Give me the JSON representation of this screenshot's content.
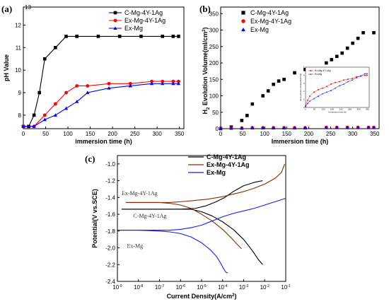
{
  "chart_data": [
    {
      "type": "line",
      "panel_label": "(a)",
      "xlabel": "immersion time (h)",
      "ylabel": "pH Value",
      "xlim": [
        0,
        360
      ],
      "ylim": [
        7.4,
        12.8
      ],
      "x_ticks": [
        0,
        50,
        100,
        150,
        200,
        250,
        300,
        350
      ],
      "y_ticks": [
        8,
        9,
        10,
        11,
        12
      ],
      "extra_tick": "13",
      "legend_position": "top-right",
      "series": [
        {
          "name": "C-Mg-4Y-1Ag",
          "color": "#000000",
          "marker": "square",
          "x": [
            0,
            12,
            24,
            36,
            48,
            72,
            96,
            120,
            168,
            216,
            264,
            312,
            336,
            348
          ],
          "y": [
            7.5,
            7.5,
            8.0,
            9.0,
            10.5,
            11.0,
            11.5,
            11.5,
            11.5,
            11.5,
            11.5,
            11.5,
            11.5,
            11.5
          ]
        },
        {
          "name": "Ex-Mg-4Y-1Ag",
          "color": "#ff0000",
          "marker": "circle",
          "x": [
            0,
            24,
            48,
            72,
            96,
            120,
            144,
            192,
            240,
            288,
            312,
            336,
            348
          ],
          "y": [
            7.5,
            7.5,
            8.0,
            8.5,
            9.0,
            9.3,
            9.3,
            9.4,
            9.4,
            9.5,
            9.5,
            9.5,
            9.5
          ]
        },
        {
          "name": "Ex-Mg",
          "color": "#0000ff",
          "marker": "triangle",
          "x": [
            0,
            24,
            48,
            72,
            96,
            120,
            144,
            192,
            240,
            288,
            312,
            336,
            348
          ],
          "y": [
            7.5,
            7.5,
            7.8,
            8.0,
            8.3,
            8.6,
            9.0,
            9.2,
            9.3,
            9.4,
            9.4,
            9.4,
            9.4
          ]
        }
      ]
    },
    {
      "type": "scatter",
      "panel_label": "(b)",
      "xlabel": "Immersion time (h)",
      "ylabel_main": "H",
      "ylabel_sub": "2",
      "ylabel_rest": " Evolution Volume(ml/cm",
      "ylabel_sup": "2",
      "ylabel_end": ")",
      "xlim": [
        0,
        360
      ],
      "ylim": [
        0,
        370
      ],
      "x_ticks": [
        0,
        50,
        100,
        150,
        200,
        250,
        300,
        350
      ],
      "y_ticks": [
        0,
        50,
        100,
        150,
        200,
        250,
        300,
        350
      ],
      "legend_position": "top-left",
      "series": [
        {
          "name": "C-Mg-4Y-1Ag",
          "color": "#000000",
          "marker": "square",
          "x": [
            0,
            24,
            48,
            60,
            72,
            96,
            108,
            120,
            132,
            144,
            168,
            192,
            240,
            252,
            264,
            276,
            288,
            300,
            312,
            324,
            348
          ],
          "y": [
            0,
            5,
            25,
            40,
            75,
            100,
            115,
            135,
            145,
            150,
            170,
            180,
            200,
            210,
            220,
            230,
            245,
            260,
            275,
            292,
            292
          ]
        },
        {
          "name": "Ex-Mg-4Y-1Ag",
          "color": "#ff0000",
          "marker": "circle",
          "x": [
            0,
            24,
            48,
            72,
            96,
            120,
            144,
            168,
            192,
            240,
            264,
            288,
            312,
            336,
            348
          ],
          "y": [
            2,
            2,
            2,
            3,
            3,
            3,
            3,
            3,
            3,
            4,
            4,
            4,
            4,
            4,
            4
          ]
        },
        {
          "name": "Ex-Mg",
          "color": "#0000ff",
          "marker": "triangle",
          "x": [
            0,
            24,
            48,
            72,
            96,
            120,
            144,
            168,
            192,
            240,
            264,
            288,
            312,
            336,
            348
          ],
          "y": [
            1,
            1,
            1,
            2,
            2,
            2,
            2,
            2,
            2,
            3,
            3,
            3,
            3,
            3,
            3
          ]
        }
      ],
      "inset": {
        "xlabel": "Immersion time (h)",
        "ylabel": "H2 Evolution Volume(ml/cm2)",
        "xlim": [
          0,
          360
        ],
        "ylim": [
          0,
          5
        ],
        "x_ticks": [
          0,
          50,
          100,
          150,
          200,
          250,
          300,
          350
        ],
        "y_ticks": [
          0,
          1,
          2,
          3,
          4,
          5
        ],
        "series": [
          {
            "name": "Ex-Mg-4Y-1Ag",
            "color": "#ff0000",
            "marker": "circle",
            "x": [
              0,
              12,
              24,
              48,
              72,
              96,
              120,
              144,
              168,
              192,
              216,
              240,
              264,
              288,
              312,
              336,
              348
            ],
            "y": [
              0.2,
              0.9,
              1.4,
              1.9,
              2.2,
              2.4,
              2.6,
              2.9,
              3.1,
              3.2,
              3.4,
              3.5,
              3.6,
              3.8,
              3.9,
              4.0,
              4.0
            ]
          },
          {
            "name": "Ex-Mg",
            "color": "#0000ff",
            "marker": "triangle",
            "x": [
              0,
              12,
              24,
              48,
              72,
              96,
              120,
              144,
              168,
              192,
              216,
              240,
              264,
              288,
              312,
              336,
              348
            ],
            "y": [
              0.1,
              0.5,
              0.8,
              1.1,
              1.4,
              1.7,
              1.9,
              2.1,
              2.4,
              2.7,
              2.9,
              3.2,
              3.4,
              3.7,
              3.9,
              4.2,
              4.2
            ]
          }
        ]
      }
    },
    {
      "type": "line",
      "panel_label": "(c)",
      "xlabel_main": "Current Density(A/cm",
      "xlabel_sup": "2",
      "xlabel_end": ")",
      "ylabel": "Potential(V vs.SCE)",
      "x_scale": "log",
      "xlim_exp": [
        -9,
        -1
      ],
      "ylim": [
        -2.4,
        -0.9
      ],
      "x_tick_exps": [
        -9,
        -8,
        -7,
        -6,
        -5,
        -4,
        -3,
        -2,
        -1
      ],
      "x_tick_base": "10",
      "y_ticks": [
        -2.4,
        -2.2,
        -2.0,
        -1.8,
        -1.6,
        -1.4,
        -1.2,
        -1.0
      ],
      "legend_position": "top-right",
      "annotations": [
        {
          "text": "Ex-Mg-4Y-1Ag",
          "x_exp": -9,
          "y": -1.37
        },
        {
          "text": "C-Mg-4Y-1Ag",
          "x_exp": -8.45,
          "y": -1.64
        },
        {
          "text": "Ex-Mg",
          "x_exp": -8.75,
          "y": -2.0
        }
      ],
      "series": [
        {
          "name": "C-Mg-4Y-1Ag",
          "color": "#000000",
          "branches": [
            {
              "log_i": [
                -8.8,
                -8.0,
                -7.0,
                -6.0,
                -5.3,
                -4.8,
                -4.3,
                -3.9,
                -3.5,
                -3.0,
                -2.5,
                -2.1
              ],
              "e": [
                -1.54,
                -1.54,
                -1.54,
                -1.54,
                -1.53,
                -1.5,
                -1.45,
                -1.4,
                -1.33,
                -1.26,
                -1.22,
                -1.2
              ]
            },
            {
              "log_i": [
                -8.8,
                -7.0,
                -6.0,
                -5.5,
                -5.0,
                -4.5,
                -4.0,
                -3.5,
                -3.0,
                -2.6,
                -2.3,
                -2.1
              ],
              "e": [
                -1.54,
                -1.54,
                -1.54,
                -1.54,
                -1.57,
                -1.62,
                -1.69,
                -1.78,
                -1.9,
                -2.03,
                -2.14,
                -2.2
              ]
            }
          ]
        },
        {
          "name": "Ex-Mg-4Y-1Ag",
          "color": "#8b2a00",
          "branches": [
            {
              "log_i": [
                -8.6,
                -7.5,
                -6.5,
                -5.5,
                -4.7,
                -4.0,
                -3.5,
                -3.0,
                -2.5,
                -2.0,
                -1.5,
                -1.2,
                -1.05
              ],
              "e": [
                -1.46,
                -1.46,
                -1.46,
                -1.44,
                -1.42,
                -1.39,
                -1.36,
                -1.33,
                -1.29,
                -1.24,
                -1.17,
                -1.1,
                -1.0
              ]
            },
            {
              "log_i": [
                -8.6,
                -7.5,
                -7.0,
                -6.5,
                -6.0,
                -5.5,
                -5.0,
                -4.5,
                -4.0,
                -3.6,
                -3.3,
                -3.1
              ],
              "e": [
                -1.46,
                -1.46,
                -1.46,
                -1.47,
                -1.49,
                -1.53,
                -1.6,
                -1.68,
                -1.78,
                -1.88,
                -1.96,
                -2.01
              ]
            }
          ]
        },
        {
          "name": "Ex-Mg",
          "color": "#1a1aff",
          "branches": [
            {
              "log_i": [
                -9.0,
                -8.0,
                -7.0,
                -6.5,
                -6.0,
                -5.5,
                -5.0,
                -4.5,
                -4.0,
                -3.5,
                -3.0,
                -2.5,
                -2.0,
                -1.5,
                -1.0
              ],
              "e": [
                -1.79,
                -1.79,
                -1.79,
                -1.79,
                -1.78,
                -1.76,
                -1.73,
                -1.68,
                -1.63,
                -1.59,
                -1.56,
                -1.53,
                -1.49,
                -1.45,
                -1.41
              ]
            },
            {
              "log_i": [
                -9.0,
                -8.0,
                -7.0,
                -6.5,
                -6.0,
                -5.5,
                -5.0,
                -4.6,
                -4.3,
                -4.1,
                -3.95,
                -3.85,
                -3.75
              ],
              "e": [
                -1.79,
                -1.79,
                -1.8,
                -1.81,
                -1.83,
                -1.87,
                -1.94,
                -2.02,
                -2.1,
                -2.18,
                -2.25,
                -2.29,
                -2.3
              ]
            }
          ]
        }
      ]
    }
  ]
}
